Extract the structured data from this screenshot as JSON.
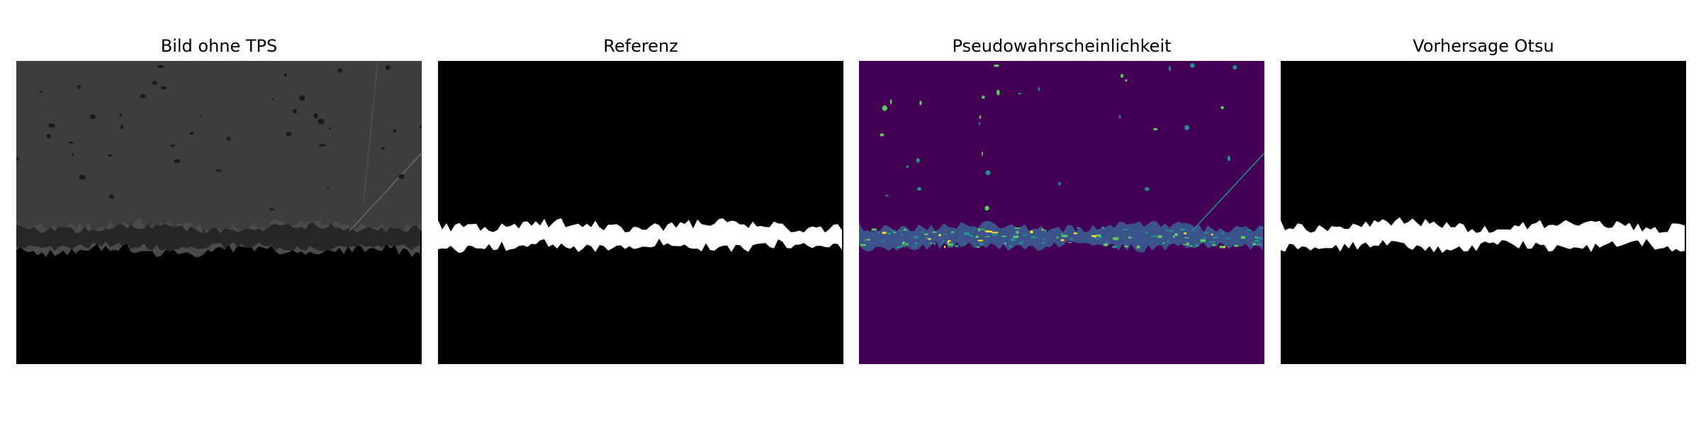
{
  "panels": [
    {
      "title": "Bild ohne TPS",
      "kind": "micrograph",
      "colors": {
        "material": "#3d3d3d",
        "dark": "#000000"
      }
    },
    {
      "title": "Referenz",
      "kind": "binary-mask",
      "colors": {
        "bg": "#000000",
        "fg": "#ffffff"
      }
    },
    {
      "title": "Pseudowahrscheinlichkeit",
      "kind": "probability-map",
      "colors": {
        "low": "#440154",
        "mid": "#21918c",
        "high": "#5ec962",
        "top": "#fde725"
      }
    },
    {
      "title": "Vorhersage Otsu",
      "kind": "binary-mask",
      "colors": {
        "bg": "#000000",
        "fg": "#ffffff"
      }
    }
  ]
}
